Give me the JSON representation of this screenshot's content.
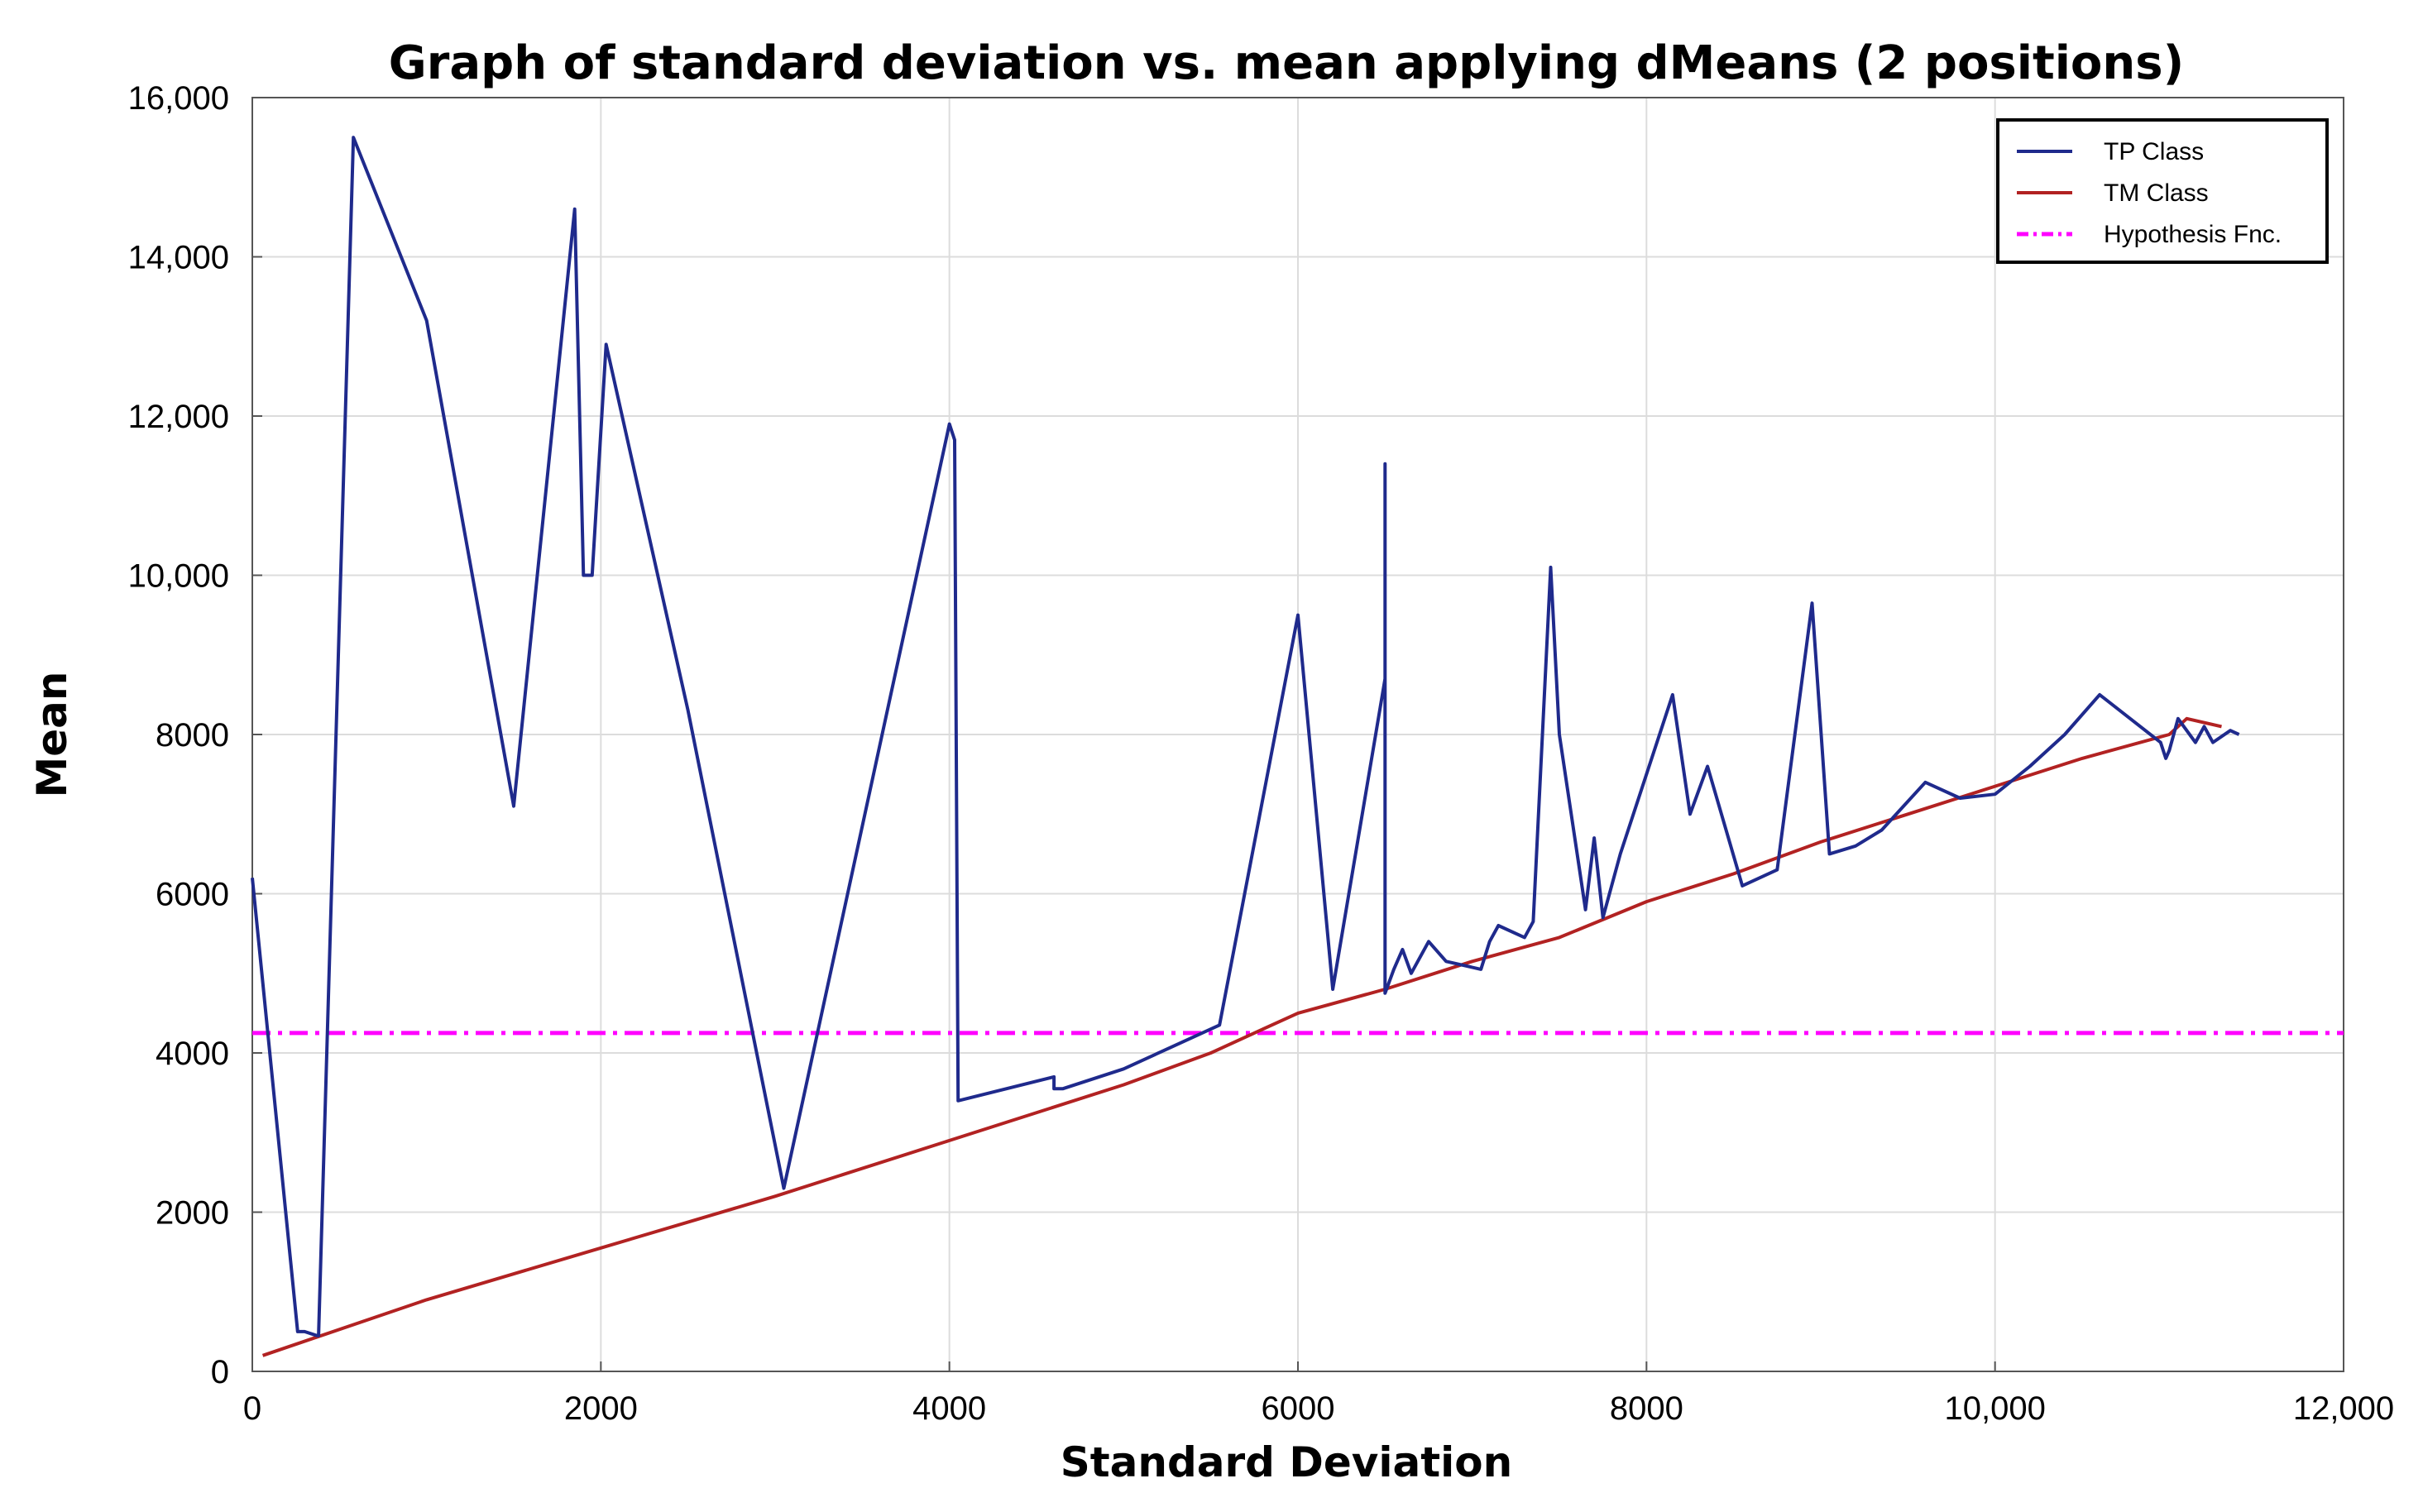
{
  "chart_data": {
    "type": "line",
    "title": "Graph of standard deviation vs. mean applying dMeans (2 positions)",
    "xlabel": "Standard Deviation",
    "ylabel": "Mean",
    "xlim": [
      0,
      12000
    ],
    "ylim": [
      0,
      16000
    ],
    "grid": true,
    "legend_position": "top-right",
    "xticks": [
      0,
      2000,
      4000,
      6000,
      8000,
      10000,
      12000
    ],
    "xtick_labels": [
      "0",
      "2000",
      "4000",
      "6000",
      "8000",
      "10,000",
      "12,000"
    ],
    "yticks": [
      0,
      2000,
      4000,
      6000,
      8000,
      10000,
      12000,
      14000,
      16000
    ],
    "ytick_labels": [
      "0",
      "2000",
      "4000",
      "6000",
      "8000",
      "10,000",
      "12,000",
      "14,000",
      "16,000"
    ],
    "series": [
      {
        "name": "TP Class",
        "color": "#1f2a8c",
        "style": "solid",
        "x": [
          0,
          260,
          300,
          370,
          380,
          580,
          1000,
          1500,
          1850,
          1900,
          1950,
          2030,
          2500,
          3050,
          4000,
          4030,
          4050,
          4050,
          4600,
          4600,
          4650,
          5000,
          5550,
          6000,
          6200,
          6500,
          6500,
          6500,
          6550,
          6600,
          6650,
          6750,
          6850,
          6950,
          7050,
          7100,
          7150,
          7300,
          7350,
          7450,
          7500,
          7650,
          7700,
          7750,
          7850,
          8150,
          8250,
          8350,
          8550,
          8750,
          8950,
          9050,
          9200,
          9350,
          9600,
          9800,
          10000,
          10200,
          10400,
          10600,
          10950,
          10980,
          11000,
          11050,
          11150,
          11200,
          11250,
          11350,
          11400
        ],
        "y": [
          6200,
          500,
          500,
          450,
          450,
          15500,
          13200,
          7100,
          14600,
          10000,
          10000,
          12900,
          8300,
          2300,
          11900,
          11700,
          3400,
          3400,
          3700,
          3550,
          3550,
          3800,
          4350,
          9500,
          4800,
          8700,
          11400,
          4750,
          5050,
          5300,
          5000,
          5400,
          5150,
          5100,
          5050,
          5400,
          5600,
          5450,
          5650,
          10100,
          8000,
          5800,
          6700,
          5700,
          6500,
          8500,
          7000,
          7600,
          6100,
          6300,
          9650,
          6500,
          6600,
          6800,
          7400,
          7200,
          7250,
          7600,
          8000,
          8500,
          7900,
          7700,
          7800,
          8200,
          7900,
          8100,
          7900,
          8050,
          8000
        ]
      },
      {
        "name": "TM Class",
        "color": "#b22222",
        "style": "solid",
        "x": [
          60,
          1000,
          2000,
          3000,
          4000,
          5000,
          5500,
          5800,
          6000,
          6500,
          7000,
          7500,
          8000,
          8500,
          9000,
          9500,
          10000,
          10500,
          11000,
          11100,
          11300
        ],
        "y": [
          200,
          900,
          1550,
          2200,
          2900,
          3600,
          4000,
          4300,
          4500,
          4800,
          5150,
          5450,
          5900,
          6250,
          6650,
          7000,
          7350,
          7700,
          8000,
          8200,
          8100
        ]
      },
      {
        "name": "Hypothesis Fnc.",
        "color": "#ff00ff",
        "style": "dash-dot",
        "x": [
          0,
          12000
        ],
        "y": [
          4250,
          4250
        ]
      }
    ]
  }
}
